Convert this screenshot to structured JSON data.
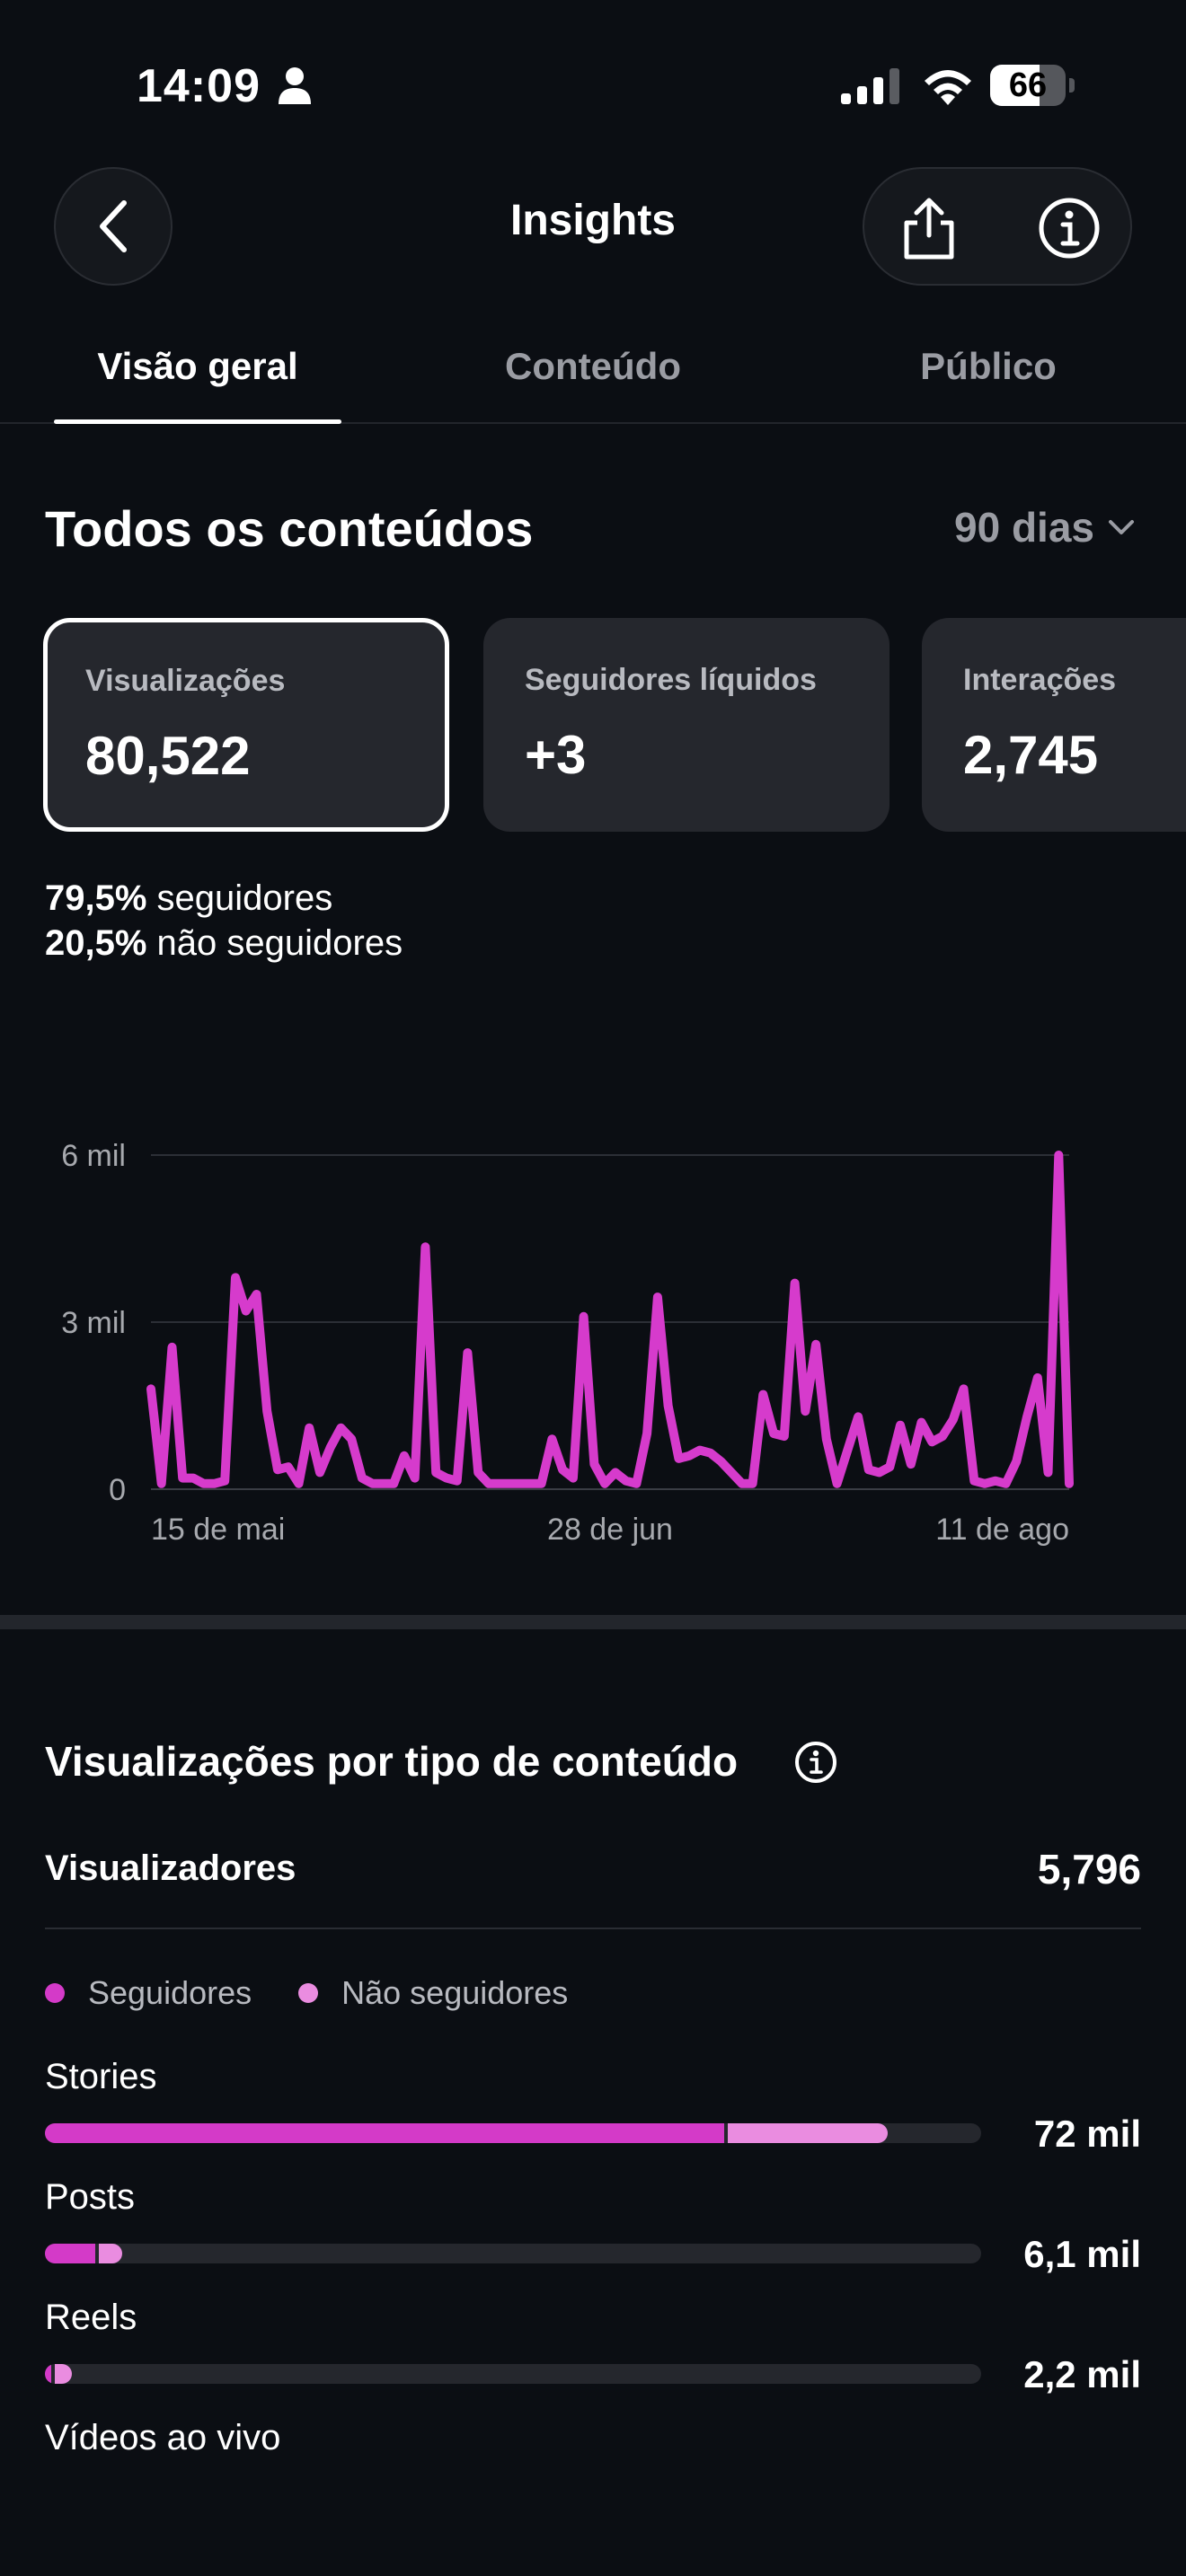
{
  "status_bar": {
    "time": "14:09",
    "battery": "66",
    "battery_level": 0.66
  },
  "header": {
    "title": "Insights"
  },
  "tabs": [
    {
      "label": "Visão geral",
      "active": true
    },
    {
      "label": "Conteúdo",
      "active": false
    },
    {
      "label": "Público",
      "active": false
    }
  ],
  "overview": {
    "title": "Todos os conteúdos",
    "range": "90 dias",
    "cards": [
      {
        "label": "Visualizações",
        "value": "80,522",
        "selected": true
      },
      {
        "label": "Seguidores líquidos",
        "value": "+3",
        "selected": false
      },
      {
        "label": "Interações",
        "value": "2,745",
        "selected": false
      }
    ],
    "split": {
      "followers_pct": "79,5%",
      "followers_label": "seguidores",
      "non_followers_pct": "20,5%",
      "non_followers_label": "não seguidores"
    }
  },
  "chart_data": {
    "type": "line",
    "title": "",
    "xlabel": "",
    "ylabel": "",
    "y_tick_labels": [
      "0",
      "3 mil",
      "6 mil"
    ],
    "y_ticks": [
      0,
      3000,
      6000
    ],
    "x_tick_labels": [
      "15 de mai",
      "28 de jun",
      "11 de ago"
    ],
    "ylim": [
      0,
      6000
    ],
    "grid": true,
    "color": "#d63bcc",
    "series": [
      {
        "values": [
          1800,
          100,
          2550,
          200,
          200,
          100,
          100,
          150,
          3800,
          3200,
          3500,
          1400,
          350,
          400,
          100,
          1100,
          300,
          750,
          1100,
          900,
          200,
          100,
          100,
          100,
          600,
          200,
          4350,
          300,
          200,
          150,
          2450,
          300,
          100,
          100,
          100,
          100,
          100,
          100,
          900,
          350,
          200,
          3100,
          450,
          100,
          300,
          150,
          100,
          1000,
          3450,
          1500,
          550,
          600,
          700,
          650,
          500,
          300,
          100,
          100,
          1700,
          1000,
          950,
          3700,
          1400,
          2600,
          900,
          100,
          700,
          1300,
          350,
          300,
          400,
          1150,
          450,
          1200,
          850,
          950,
          1250,
          1800,
          150,
          100,
          150,
          100,
          500,
          1300,
          2000,
          300,
          6000,
          100
        ]
      }
    ]
  },
  "content_type": {
    "title": "Visualizações por tipo de conteúdo",
    "viewers_label": "Visualizadores",
    "viewers_value": "5,796",
    "legend": [
      {
        "label": "Seguidores",
        "color": "#d43ac8"
      },
      {
        "label": "Não seguidores",
        "color": "#ea8ce0"
      }
    ],
    "rows": [
      {
        "label": "Stories",
        "value": "72 mil",
        "followers_share": 0.726,
        "non_followers_share": 0.17
      },
      {
        "label": "Posts",
        "value": "6,1 mil",
        "followers_share": 0.054,
        "non_followers_share": 0.025
      },
      {
        "label": "Reels",
        "value": "2,2 mil",
        "followers_share": 0.007,
        "non_followers_share": 0.018
      },
      {
        "label": "Vídeos ao vivo",
        "value": "",
        "followers_share": 0,
        "non_followers_share": 0
      }
    ]
  }
}
